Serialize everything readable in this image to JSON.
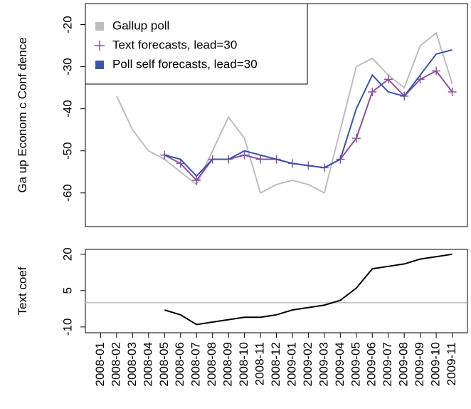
{
  "chart_data": [
    {
      "type": "line",
      "ylabel": "Ga up Econom c Conf dence",
      "x": [
        "2008-01",
        "2008-02",
        "2008-03",
        "2008-04",
        "2008-05",
        "2008-06",
        "2008-07",
        "2008-08",
        "2008-09",
        "2008-10",
        "2008-11",
        "2008-12",
        "2009-01",
        "2009-02",
        "2009-03",
        "2009-04",
        "2009-05",
        "2009-06",
        "2009-07",
        "2009-08",
        "2009-09",
        "2009-10",
        "2009-11"
      ],
      "series": [
        {
          "name": "Gallup poll",
          "color": "#bdbdbd",
          "marker": "square",
          "values": [
            null,
            -37,
            -45,
            -50,
            -52,
            -55,
            -58,
            -50,
            -42,
            -47,
            -60,
            -58,
            -57,
            -58,
            -60,
            -45,
            -30,
            -28,
            -32,
            -35,
            -25,
            -22,
            -34
          ]
        },
        {
          "name": "Text forecasts, lead=30",
          "color": "#8e4fa6",
          "marker": "plus",
          "values": [
            null,
            null,
            null,
            null,
            -51,
            -53,
            -57,
            -52,
            -52,
            -51,
            -52,
            -52,
            -53,
            -53.5,
            -54,
            -52,
            -47,
            -36,
            -33,
            -37,
            -33,
            -31,
            -36
          ]
        },
        {
          "name": "Poll self  forecasts, lead=30",
          "color": "#3a56a5",
          "marker": "square",
          "values": [
            null,
            null,
            null,
            null,
            -51,
            -52,
            -56,
            -52,
            -52,
            -50,
            -51,
            -52,
            -53,
            -53.5,
            -54,
            -52,
            -40,
            -32,
            -36,
            -37,
            -32,
            -27,
            -26
          ]
        }
      ],
      "xlim": [
        "2007-12",
        "2009-12"
      ],
      "ylim": [
        -68,
        -15
      ],
      "yticks": [
        -20,
        -30,
        -40,
        -50,
        -60
      ],
      "legend": "top-left"
    },
    {
      "type": "line",
      "ylabel": "Text coef",
      "x": [
        "2008-01",
        "2008-02",
        "2008-03",
        "2008-04",
        "2008-05",
        "2008-06",
        "2008-07",
        "2008-08",
        "2008-09",
        "2008-10",
        "2008-11",
        "2008-12",
        "2009-01",
        "2009-02",
        "2009-03",
        "2009-04",
        "2009-05",
        "2009-06",
        "2009-07",
        "2009-08",
        "2009-09",
        "2009-10",
        "2009-11"
      ],
      "series": [
        {
          "color": "#000000",
          "values": [
            null,
            null,
            null,
            null,
            -3,
            -5,
            -9,
            -8,
            -7,
            -6,
            -6,
            -5,
            -3,
            -2,
            -1,
            1,
            6,
            14,
            15,
            16,
            18,
            19,
            20
          ]
        }
      ],
      "hline": 0,
      "hline_color": "#bdbdbd",
      "xlim": [
        "2007-12",
        "2009-12"
      ],
      "ylim": [
        -12.4,
        22
      ],
      "yticks": [
        20,
        5,
        -10
      ],
      "xticks": [
        "2008-01",
        "2008-02",
        "2008-03",
        "2008-04",
        "2008-05",
        "2008-06",
        "2008-07",
        "2008-08",
        "2008-09",
        "2008-10",
        "2008-11",
        "2008-12",
        "2009-01",
        "2009-02",
        "2009-03",
        "2009-04",
        "2009-05",
        "2009-06",
        "2009-07",
        "2009-08",
        "2009-09",
        "2009-10",
        "2009-11"
      ]
    }
  ]
}
